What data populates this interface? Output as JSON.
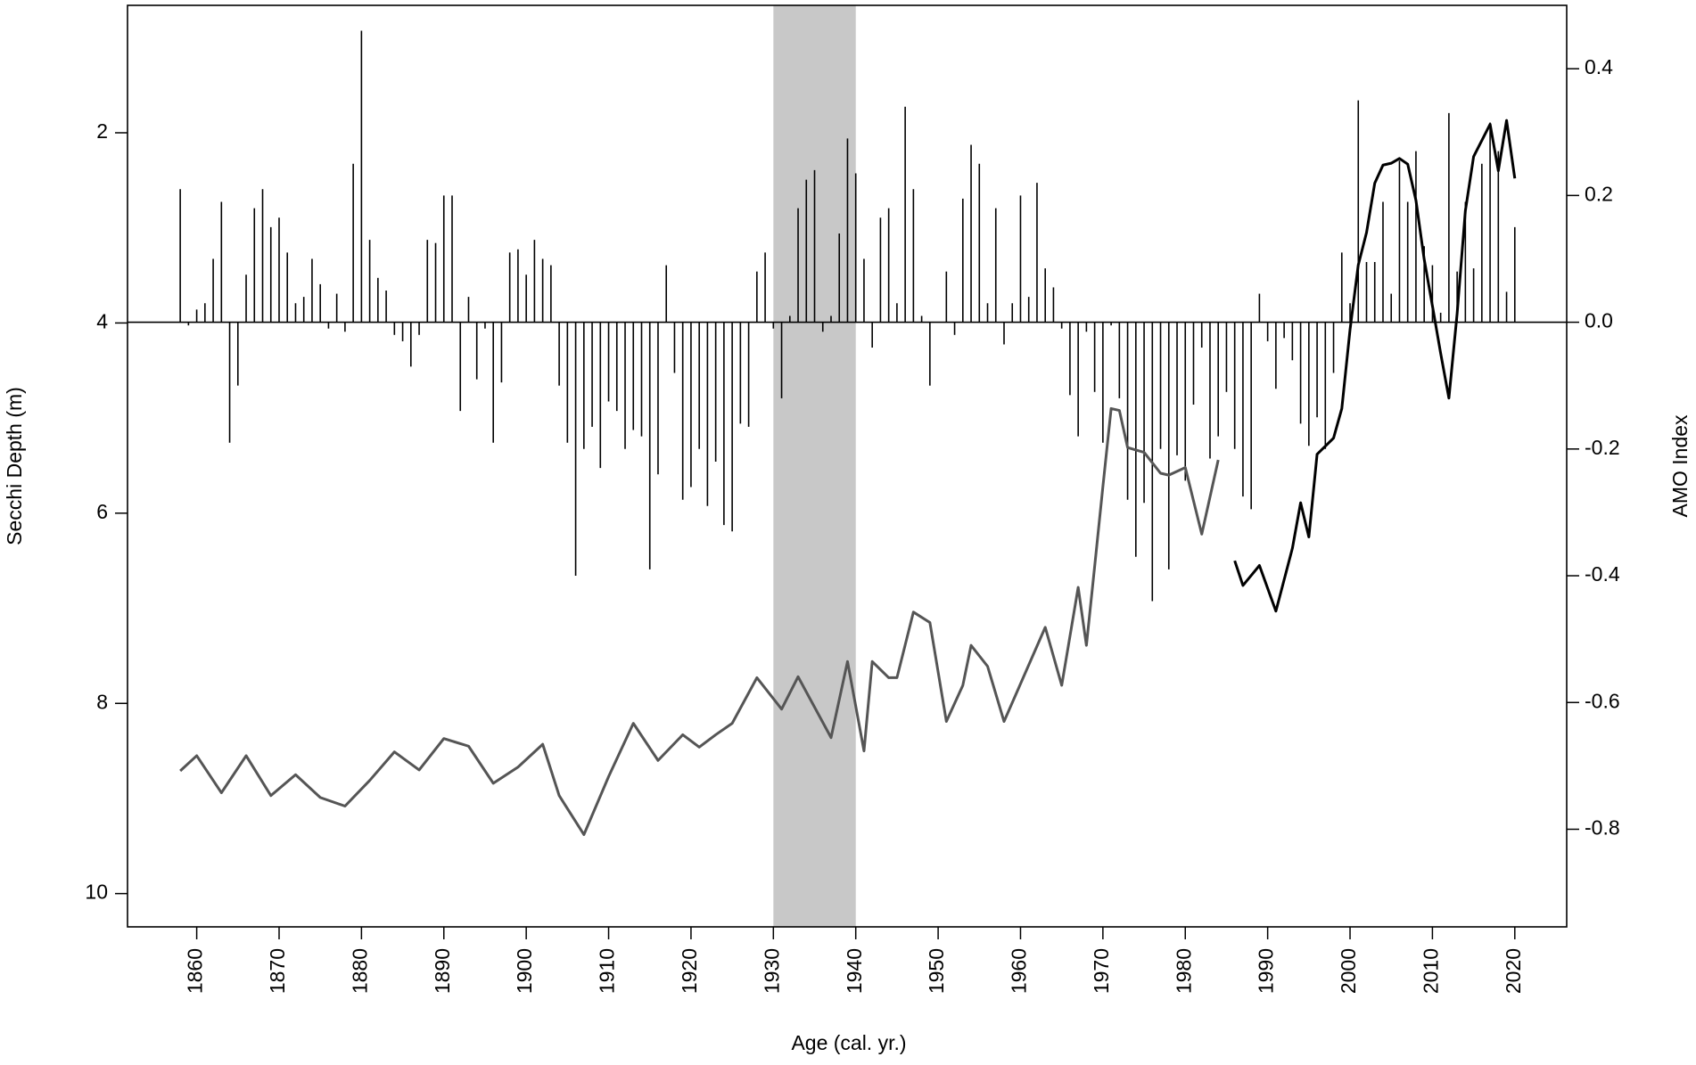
{
  "chart_data": {
    "type": "bar_line",
    "xlabel": "Age (cal. yr.)",
    "ylabel": "Secchi Depth (m)",
    "y2label": "AMO Index",
    "xlim": [
      1851.6,
      2026.3
    ],
    "xticks": [
      1860,
      1870,
      1880,
      1890,
      1900,
      1910,
      1920,
      1930,
      1940,
      1950,
      1960,
      1970,
      1980,
      1990,
      2000,
      2010,
      2020
    ],
    "ylim": [
      0.66,
      10.35
    ],
    "y_reversed": true,
    "yticks": [
      2,
      4,
      6,
      8,
      10
    ],
    "y2lim": [
      -0.954,
      0.5
    ],
    "y2ticks": [
      0.4,
      0.2,
      {
        "value": 0,
        "label": "0.0"
      },
      -0.2,
      -0.4,
      -0.6,
      -0.8
    ],
    "shaded_span": {
      "start": 1930,
      "end": 1940,
      "color": "#c8c8c8"
    },
    "bars": {
      "axis": "y2",
      "color": "#000000",
      "x": [
        1858,
        1859,
        1860,
        1861,
        1862,
        1863,
        1864,
        1865,
        1866,
        1867,
        1868,
        1869,
        1870,
        1871,
        1872,
        1873,
        1874,
        1875,
        1876,
        1877,
        1878,
        1879,
        1880,
        1881,
        1882,
        1883,
        1884,
        1885,
        1886,
        1887,
        1888,
        1889,
        1890,
        1891,
        1892,
        1893,
        1894,
        1895,
        1896,
        1897,
        1898,
        1899,
        1900,
        1901,
        1902,
        1903,
        1904,
        1905,
        1906,
        1907,
        1908,
        1909,
        1910,
        1911,
        1912,
        1913,
        1914,
        1915,
        1916,
        1917,
        1918,
        1919,
        1920,
        1921,
        1922,
        1923,
        1924,
        1925,
        1926,
        1927,
        1928,
        1929,
        1930,
        1931,
        1932,
        1933,
        1934,
        1935,
        1936,
        1937,
        1938,
        1939,
        1940,
        1941,
        1942,
        1943,
        1944,
        1945,
        1946,
        1947,
        1948,
        1949,
        1950,
        1951,
        1952,
        1953,
        1954,
        1955,
        1956,
        1957,
        1958,
        1959,
        1960,
        1961,
        1962,
        1963,
        1964,
        1965,
        1966,
        1967,
        1968,
        1969,
        1970,
        1971,
        1972,
        1973,
        1974,
        1975,
        1976,
        1977,
        1978,
        1979,
        1980,
        1981,
        1982,
        1983,
        1984,
        1985,
        1986,
        1987,
        1988,
        1989,
        1990,
        1991,
        1992,
        1993,
        1994,
        1995,
        1996,
        1997,
        1998,
        1999,
        2000,
        2001,
        2002,
        2003,
        2004,
        2005,
        2006,
        2007,
        2008,
        2009,
        2010,
        2011,
        2012,
        2013,
        2014,
        2015,
        2016,
        2017,
        2018,
        2019,
        2020
      ],
      "values": [
        0.21,
        -0.005,
        0.02,
        0.03,
        0.1,
        0.19,
        -0.19,
        -0.1,
        0.075,
        0.18,
        0.21,
        0.15,
        0.165,
        0.11,
        0.03,
        0.04,
        0.1,
        0.06,
        -0.01,
        0.045,
        -0.015,
        0.25,
        0.46,
        0.13,
        0.07,
        0.05,
        -0.02,
        -0.03,
        -0.07,
        -0.02,
        0.13,
        0.125,
        0.2,
        0.2,
        -0.14,
        0.04,
        -0.09,
        -0.01,
        -0.19,
        -0.095,
        0.11,
        0.115,
        0.075,
        0.13,
        0.1,
        0.09,
        -0.1,
        -0.19,
        -0.4,
        -0.2,
        -0.165,
        -0.23,
        -0.125,
        -0.14,
        -0.2,
        -0.17,
        -0.18,
        -0.39,
        -0.24,
        0.09,
        -0.08,
        -0.28,
        -0.26,
        -0.2,
        -0.29,
        -0.22,
        -0.32,
        -0.33,
        -0.16,
        -0.165,
        0.08,
        0.11,
        -0.01,
        -0.12,
        0.01,
        0.18,
        0.225,
        0.24,
        -0.015,
        0.01,
        0.14,
        0.29,
        0.235,
        0.1,
        -0.04,
        0.165,
        0.18,
        0.03,
        0.34,
        0.21,
        0.01,
        -0.1,
        0.0,
        0.08,
        -0.02,
        0.195,
        0.28,
        0.25,
        0.03,
        0.18,
        -0.035,
        0.03,
        0.2,
        0.04,
        0.22,
        0.085,
        0.055,
        -0.01,
        -0.115,
        -0.18,
        -0.015,
        -0.11,
        -0.19,
        -0.005,
        -0.12,
        -0.28,
        -0.37,
        -0.285,
        -0.44,
        -0.2,
        -0.39,
        -0.21,
        -0.25,
        -0.13,
        -0.04,
        -0.215,
        -0.18,
        -0.11,
        -0.2,
        -0.275,
        -0.295,
        0.045,
        -0.03,
        -0.105,
        -0.025,
        -0.06,
        -0.16,
        -0.195,
        -0.15,
        -0.2,
        -0.08,
        0.11,
        0.03,
        0.35,
        0.095,
        0.095,
        0.19,
        0.045,
        0.255,
        0.19,
        0.27,
        0.12,
        0.09,
        0.015,
        0.33,
        0.08,
        0.19,
        0.085,
        0.25,
        0.315,
        0.27,
        0.048,
        0.15
      ]
    },
    "lines": [
      {
        "color": "#555555",
        "x": [
          1858,
          1860,
          1863,
          1866,
          1869,
          1872,
          1875,
          1878,
          1881,
          1884,
          1887,
          1890,
          1893,
          1896,
          1899,
          1902,
          1904,
          1907,
          1910,
          1913,
          1916,
          1919,
          1921,
          1923,
          1925,
          1928,
          1931,
          1933,
          1937,
          1939,
          1941,
          1942,
          1944,
          1945,
          1947,
          1949,
          1951,
          1953,
          1954,
          1956,
          1958,
          1963,
          1965,
          1967,
          1968,
          1969,
          1970,
          1971,
          1972,
          1973,
          1975,
          1977,
          1978,
          1980,
          1982,
          1984
        ],
        "values": [
          8.71,
          8.55,
          8.94,
          8.55,
          8.97,
          8.75,
          8.99,
          9.08,
          8.81,
          8.51,
          8.7,
          8.37,
          8.45,
          8.84,
          8.67,
          8.43,
          8.97,
          9.38,
          8.77,
          8.21,
          8.6,
          8.33,
          8.46,
          8.33,
          8.21,
          7.73,
          8.06,
          7.72,
          8.36,
          7.56,
          8.5,
          7.56,
          7.73,
          7.73,
          7.04,
          7.15,
          8.19,
          7.81,
          7.39,
          7.61,
          8.19,
          7.2,
          7.81,
          6.78,
          7.39,
          6.56,
          5.72,
          4.9,
          4.92,
          5.31,
          5.36,
          5.58,
          5.6,
          5.52,
          6.22,
          5.44
        ]
      },
      {
        "color": "#000000",
        "x": [
          1986,
          1987,
          1989,
          1991,
          1993,
          1994,
          1995,
          1996,
          1998,
          1999,
          2000,
          2001,
          2002,
          2003,
          2004,
          2005,
          2006,
          2007,
          2008,
          2009,
          2010,
          2011,
          2012,
          2013,
          2014,
          2015,
          2016,
          2017,
          2018,
          2019,
          2020
        ],
        "values": [
          6.5,
          6.76,
          6.55,
          7.03,
          6.37,
          5.89,
          6.25,
          5.38,
          5.21,
          4.9,
          4.07,
          3.39,
          3.05,
          2.53,
          2.34,
          2.32,
          2.27,
          2.33,
          2.71,
          3.33,
          3.82,
          4.32,
          4.79,
          3.9,
          2.82,
          2.25,
          2.08,
          1.91,
          2.4,
          1.87,
          2.48
        ]
      }
    ]
  }
}
